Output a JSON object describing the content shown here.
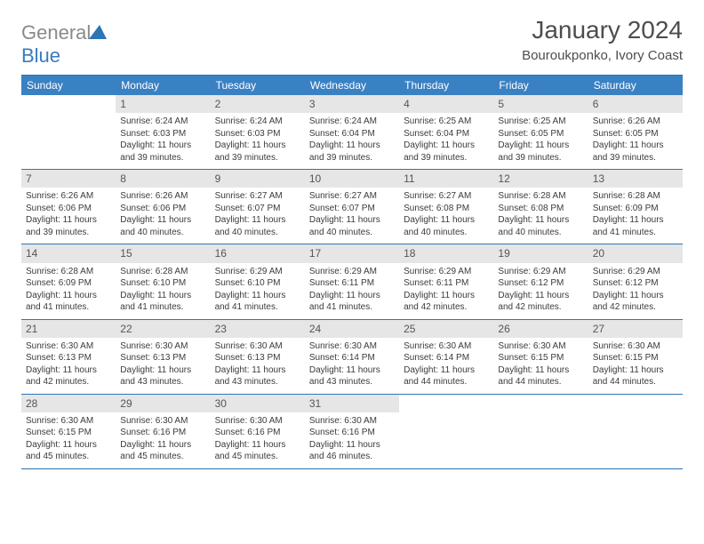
{
  "logo": {
    "word1": "General",
    "word2": "Blue"
  },
  "title": "January 2024",
  "location": "Bouroukponko, Ivory Coast",
  "colors": {
    "header_bg": "#3a81c4",
    "header_text": "#ffffff",
    "daynum_bg": "#e6e6e6",
    "border": "#2e75b6",
    "text": "#3b3b3b"
  },
  "typography": {
    "title_fontsize": 28,
    "location_fontsize": 15,
    "header_fontsize": 12,
    "body_fontsize": 10
  },
  "day_headers": [
    "Sunday",
    "Monday",
    "Tuesday",
    "Wednesday",
    "Thursday",
    "Friday",
    "Saturday"
  ],
  "weeks": [
    [
      null,
      {
        "n": "1",
        "sr": "6:24 AM",
        "ss": "6:03 PM",
        "dl": "11 hours and 39 minutes."
      },
      {
        "n": "2",
        "sr": "6:24 AM",
        "ss": "6:03 PM",
        "dl": "11 hours and 39 minutes."
      },
      {
        "n": "3",
        "sr": "6:24 AM",
        "ss": "6:04 PM",
        "dl": "11 hours and 39 minutes."
      },
      {
        "n": "4",
        "sr": "6:25 AM",
        "ss": "6:04 PM",
        "dl": "11 hours and 39 minutes."
      },
      {
        "n": "5",
        "sr": "6:25 AM",
        "ss": "6:05 PM",
        "dl": "11 hours and 39 minutes."
      },
      {
        "n": "6",
        "sr": "6:26 AM",
        "ss": "6:05 PM",
        "dl": "11 hours and 39 minutes."
      }
    ],
    [
      {
        "n": "7",
        "sr": "6:26 AM",
        "ss": "6:06 PM",
        "dl": "11 hours and 39 minutes."
      },
      {
        "n": "8",
        "sr": "6:26 AM",
        "ss": "6:06 PM",
        "dl": "11 hours and 40 minutes."
      },
      {
        "n": "9",
        "sr": "6:27 AM",
        "ss": "6:07 PM",
        "dl": "11 hours and 40 minutes."
      },
      {
        "n": "10",
        "sr": "6:27 AM",
        "ss": "6:07 PM",
        "dl": "11 hours and 40 minutes."
      },
      {
        "n": "11",
        "sr": "6:27 AM",
        "ss": "6:08 PM",
        "dl": "11 hours and 40 minutes."
      },
      {
        "n": "12",
        "sr": "6:28 AM",
        "ss": "6:08 PM",
        "dl": "11 hours and 40 minutes."
      },
      {
        "n": "13",
        "sr": "6:28 AM",
        "ss": "6:09 PM",
        "dl": "11 hours and 41 minutes."
      }
    ],
    [
      {
        "n": "14",
        "sr": "6:28 AM",
        "ss": "6:09 PM",
        "dl": "11 hours and 41 minutes."
      },
      {
        "n": "15",
        "sr": "6:28 AM",
        "ss": "6:10 PM",
        "dl": "11 hours and 41 minutes."
      },
      {
        "n": "16",
        "sr": "6:29 AM",
        "ss": "6:10 PM",
        "dl": "11 hours and 41 minutes."
      },
      {
        "n": "17",
        "sr": "6:29 AM",
        "ss": "6:11 PM",
        "dl": "11 hours and 41 minutes."
      },
      {
        "n": "18",
        "sr": "6:29 AM",
        "ss": "6:11 PM",
        "dl": "11 hours and 42 minutes."
      },
      {
        "n": "19",
        "sr": "6:29 AM",
        "ss": "6:12 PM",
        "dl": "11 hours and 42 minutes."
      },
      {
        "n": "20",
        "sr": "6:29 AM",
        "ss": "6:12 PM",
        "dl": "11 hours and 42 minutes."
      }
    ],
    [
      {
        "n": "21",
        "sr": "6:30 AM",
        "ss": "6:13 PM",
        "dl": "11 hours and 42 minutes."
      },
      {
        "n": "22",
        "sr": "6:30 AM",
        "ss": "6:13 PM",
        "dl": "11 hours and 43 minutes."
      },
      {
        "n": "23",
        "sr": "6:30 AM",
        "ss": "6:13 PM",
        "dl": "11 hours and 43 minutes."
      },
      {
        "n": "24",
        "sr": "6:30 AM",
        "ss": "6:14 PM",
        "dl": "11 hours and 43 minutes."
      },
      {
        "n": "25",
        "sr": "6:30 AM",
        "ss": "6:14 PM",
        "dl": "11 hours and 44 minutes."
      },
      {
        "n": "26",
        "sr": "6:30 AM",
        "ss": "6:15 PM",
        "dl": "11 hours and 44 minutes."
      },
      {
        "n": "27",
        "sr": "6:30 AM",
        "ss": "6:15 PM",
        "dl": "11 hours and 44 minutes."
      }
    ],
    [
      {
        "n": "28",
        "sr": "6:30 AM",
        "ss": "6:15 PM",
        "dl": "11 hours and 45 minutes."
      },
      {
        "n": "29",
        "sr": "6:30 AM",
        "ss": "6:16 PM",
        "dl": "11 hours and 45 minutes."
      },
      {
        "n": "30",
        "sr": "6:30 AM",
        "ss": "6:16 PM",
        "dl": "11 hours and 45 minutes."
      },
      {
        "n": "31",
        "sr": "6:30 AM",
        "ss": "6:16 PM",
        "dl": "11 hours and 46 minutes."
      },
      null,
      null,
      null
    ]
  ],
  "labels": {
    "sunrise": "Sunrise:",
    "sunset": "Sunset:",
    "daylight": "Daylight:"
  }
}
